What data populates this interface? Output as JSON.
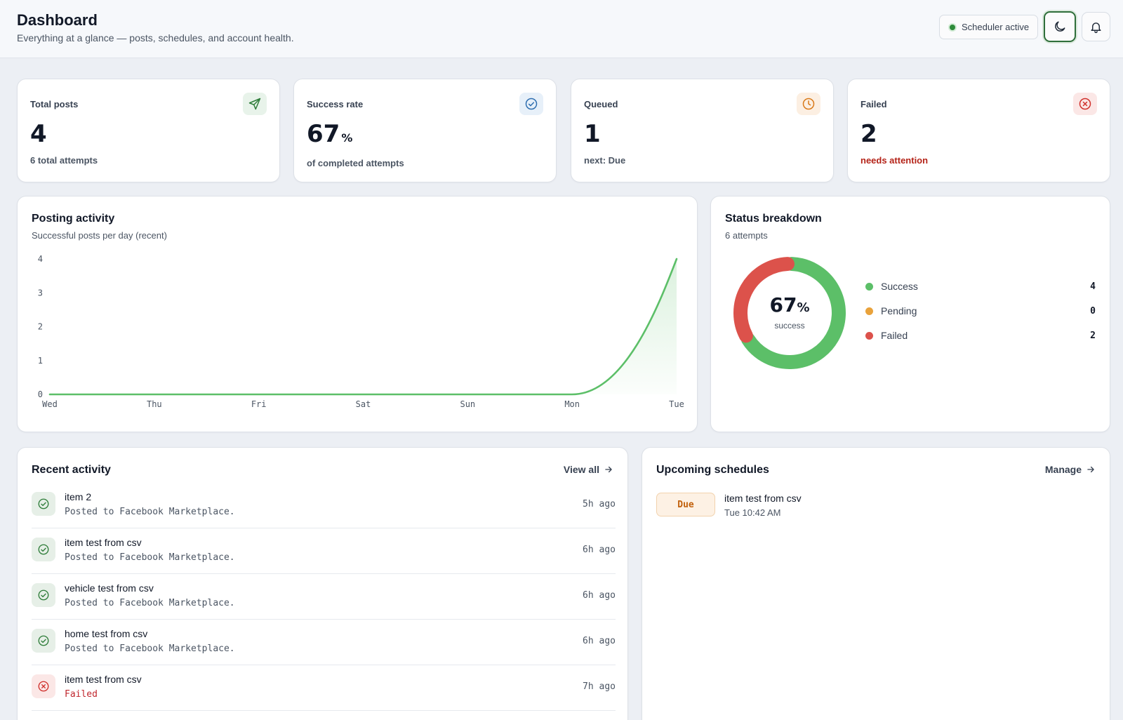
{
  "header": {
    "title": "Dashboard",
    "subtitle": "Everything at a glance — posts, schedules, and account health.",
    "scheduler_status": "Scheduler active",
    "theme_icon": "moon-icon",
    "notification_icon": "bell-icon"
  },
  "stats": [
    {
      "label": "Total posts",
      "value": "4",
      "unit": "",
      "sub": "6 total attempts",
      "icon": "send-icon",
      "accent": "#2f7d3a"
    },
    {
      "label": "Success rate",
      "value": "67",
      "unit": "%",
      "sub": "of completed attempts",
      "icon": "check-circle-icon",
      "accent": "#2f6fb0"
    },
    {
      "label": "Queued",
      "value": "1",
      "unit": "",
      "sub": "next: Due",
      "icon": "clock-icon",
      "accent": "#d97a1a"
    },
    {
      "label": "Failed",
      "value": "2",
      "unit": "",
      "sub": "needs attention",
      "icon": "x-circle-icon",
      "accent": "#d0312d"
    }
  ],
  "activity_chart": {
    "title": "Posting activity",
    "subtitle": "Successful posts per day (recent)"
  },
  "chart_data": {
    "type": "area",
    "categories": [
      "Wed",
      "Thu",
      "Fri",
      "Sat",
      "Sun",
      "Mon",
      "Tue"
    ],
    "values": [
      0,
      0,
      0,
      0,
      0,
      0,
      4
    ],
    "ylim": [
      0,
      4
    ],
    "yticks": [
      "0",
      "1",
      "2",
      "3",
      "4"
    ],
    "color": "#5cbf68",
    "grid": false
  },
  "status": {
    "title": "Status breakdown",
    "subtitle": "6 attempts",
    "center_value": "67",
    "center_unit": "%",
    "center_label": "success",
    "items": [
      {
        "label": "Success",
        "value": "4",
        "color": "#5cbf68"
      },
      {
        "label": "Pending",
        "value": "0",
        "color": "#e9a23b"
      },
      {
        "label": "Failed",
        "value": "2",
        "color": "#dc524b"
      }
    ]
  },
  "recent": {
    "title": "Recent activity",
    "link": "View all",
    "items": [
      {
        "title": "item 2",
        "sub": "Posted to Facebook Marketplace.",
        "time": "5h ago",
        "status": "success"
      },
      {
        "title": "item test from csv",
        "sub": "Posted to Facebook Marketplace.",
        "time": "6h ago",
        "status": "success"
      },
      {
        "title": "vehicle test from csv",
        "sub": "Posted to Facebook Marketplace.",
        "time": "6h ago",
        "status": "success"
      },
      {
        "title": "home test from csv",
        "sub": "Posted to Facebook Marketplace.",
        "time": "6h ago",
        "status": "success"
      },
      {
        "title": "item test from csv",
        "sub": "Failed",
        "time": "7h ago",
        "status": "failed"
      }
    ]
  },
  "upcoming": {
    "title": "Upcoming schedules",
    "link": "Manage",
    "items": [
      {
        "badge": "Due",
        "title": "item test from csv",
        "time": "Tue 10:42 AM"
      }
    ]
  }
}
